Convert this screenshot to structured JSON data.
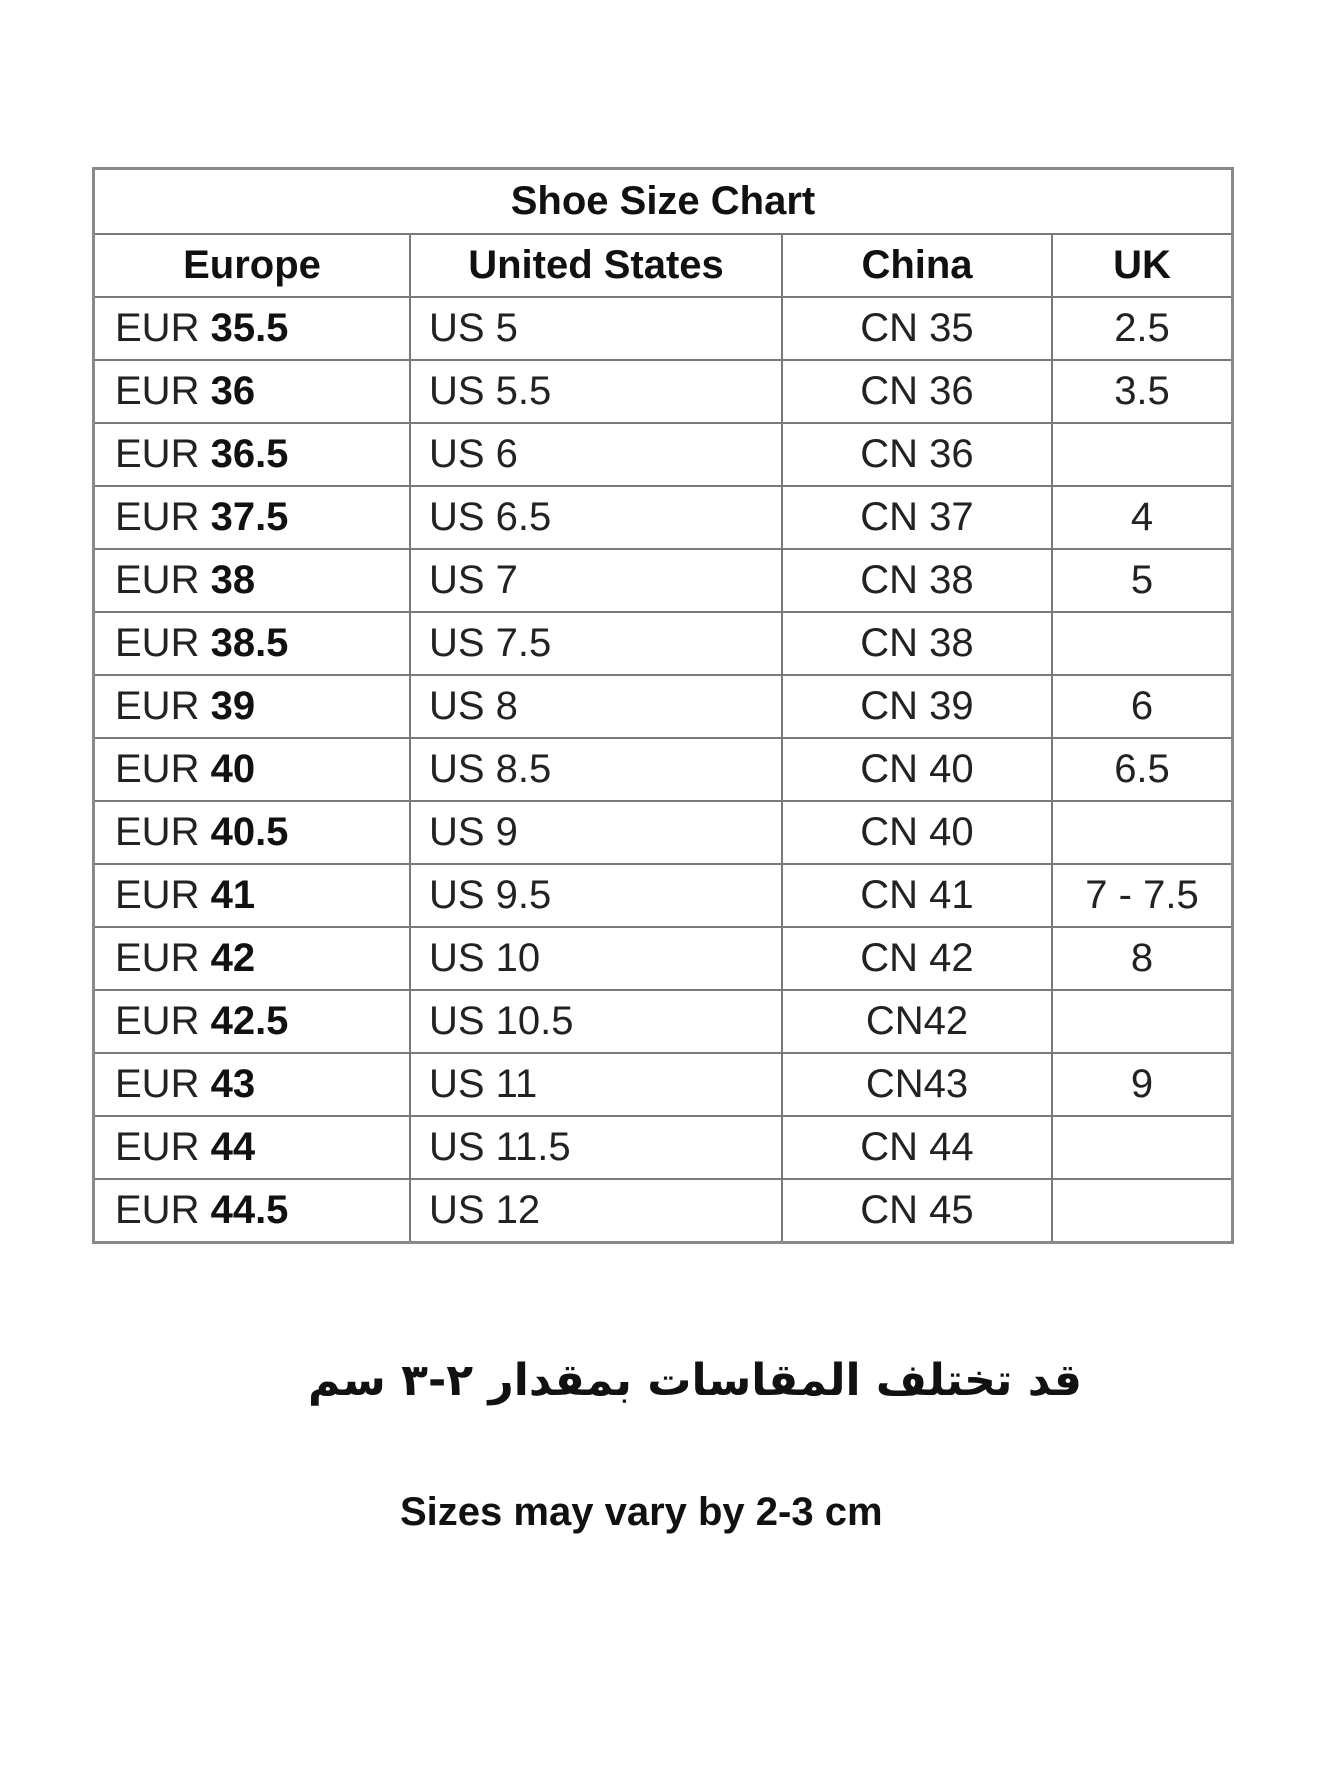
{
  "title": "Shoe Size Chart",
  "headers": [
    "Europe",
    "United States",
    "China",
    "UK"
  ],
  "rows": [
    {
      "eur_prefix": "EUR",
      "eur": "35.5",
      "us": "US 5",
      "cn": "CN 35",
      "uk": "2.5"
    },
    {
      "eur_prefix": "EUR",
      "eur": "36",
      "us": "US 5.5",
      "cn": "CN 36",
      "uk": "3.5"
    },
    {
      "eur_prefix": "EUR",
      "eur": "36.5",
      "us": "US 6",
      "cn": "CN 36",
      "uk": ""
    },
    {
      "eur_prefix": "EUR",
      "eur": "37.5",
      "us": "US 6.5",
      "cn": "CN 37",
      "uk": "4"
    },
    {
      "eur_prefix": "EUR",
      "eur": "38",
      "us": "US 7",
      "cn": "CN 38",
      "uk": "5"
    },
    {
      "eur_prefix": "EUR",
      "eur": "38.5",
      "us": "US 7.5",
      "cn": "CN 38",
      "uk": ""
    },
    {
      "eur_prefix": "EUR",
      "eur": "39",
      "us": "US 8",
      "cn": "CN 39",
      "uk": "6"
    },
    {
      "eur_prefix": "EUR",
      "eur": "40",
      "us": "US 8.5",
      "cn": "CN 40",
      "uk": "6.5"
    },
    {
      "eur_prefix": "EUR",
      "eur": "40.5",
      "us": "US 9",
      "cn": "CN 40",
      "uk": ""
    },
    {
      "eur_prefix": "EUR",
      "eur": "41",
      "us": "US 9.5",
      "cn": "CN 41",
      "uk": "7 - 7.5"
    },
    {
      "eur_prefix": "EUR",
      "eur": "42",
      "us": "US 10",
      "cn": "CN 42",
      "uk": "8"
    },
    {
      "eur_prefix": "EUR",
      "eur": "42.5",
      "us": "US 10.5",
      "cn": "CN42",
      "uk": ""
    },
    {
      "eur_prefix": "EUR",
      "eur": "43",
      "us": "US 11",
      "cn": "CN43",
      "uk": "9"
    },
    {
      "eur_prefix": "EUR",
      "eur": "44",
      "us": "US 11.5",
      "cn": "CN 44",
      "uk": ""
    },
    {
      "eur_prefix": "EUR",
      "eur": "44.5",
      "us": "US 12",
      "cn": "CN 45",
      "uk": ""
    }
  ],
  "note_arabic": "قد تختلف المقاسات بمقدار ٢-٣ سم",
  "note_english": "Sizes may vary by 2-3 cm"
}
